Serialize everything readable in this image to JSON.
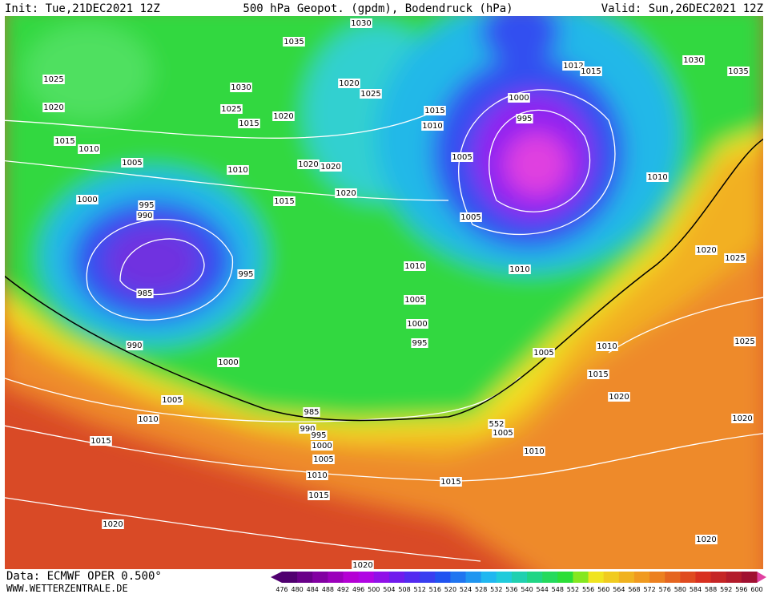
{
  "header": {
    "init": "Init: Tue,21DEC2021 12Z",
    "title": "500 hPa Geopot. (gpdm), Bodendruck (hPa)",
    "valid": "Valid: Sun,26DEC2021 12Z"
  },
  "isobar_labels": [
    "1030",
    "1035",
    "1025",
    "1020",
    "1030",
    "1025",
    "1015",
    "1020",
    "1020",
    "1025",
    "1015",
    "1010",
    "1005",
    "1010",
    "1020",
    "1020",
    "1020",
    "1015",
    "1000",
    "995",
    "990",
    "985",
    "995",
    "990",
    "1000",
    "1015",
    "1010",
    "1000",
    "995",
    "1005",
    "1005",
    "1010",
    "1010",
    "1005",
    "1000",
    "995",
    "1005",
    "1010",
    "1012",
    "1015",
    "1030",
    "1035",
    "1020",
    "1025",
    "1010",
    "1025",
    "1015",
    "1020",
    "1020",
    "1020",
    "1005",
    "1010",
    "1015",
    "985",
    "990",
    "995",
    "1000",
    "1005",
    "1010",
    "1015",
    "552",
    "1005",
    "1010",
    "1015",
    "1020",
    "1020"
  ],
  "colorbar": {
    "labels": [
      476,
      480,
      484,
      488,
      492,
      496,
      500,
      504,
      508,
      512,
      516,
      520,
      524,
      528,
      532,
      536,
      540,
      544,
      548,
      552,
      556,
      560,
      564,
      568,
      572,
      576,
      580,
      584,
      588,
      592,
      596,
      600
    ]
  },
  "footer": {
    "source": "Data: ECMWF OPER 0.500°",
    "website": "WWW.WETTERZENTRALE.DE"
  }
}
